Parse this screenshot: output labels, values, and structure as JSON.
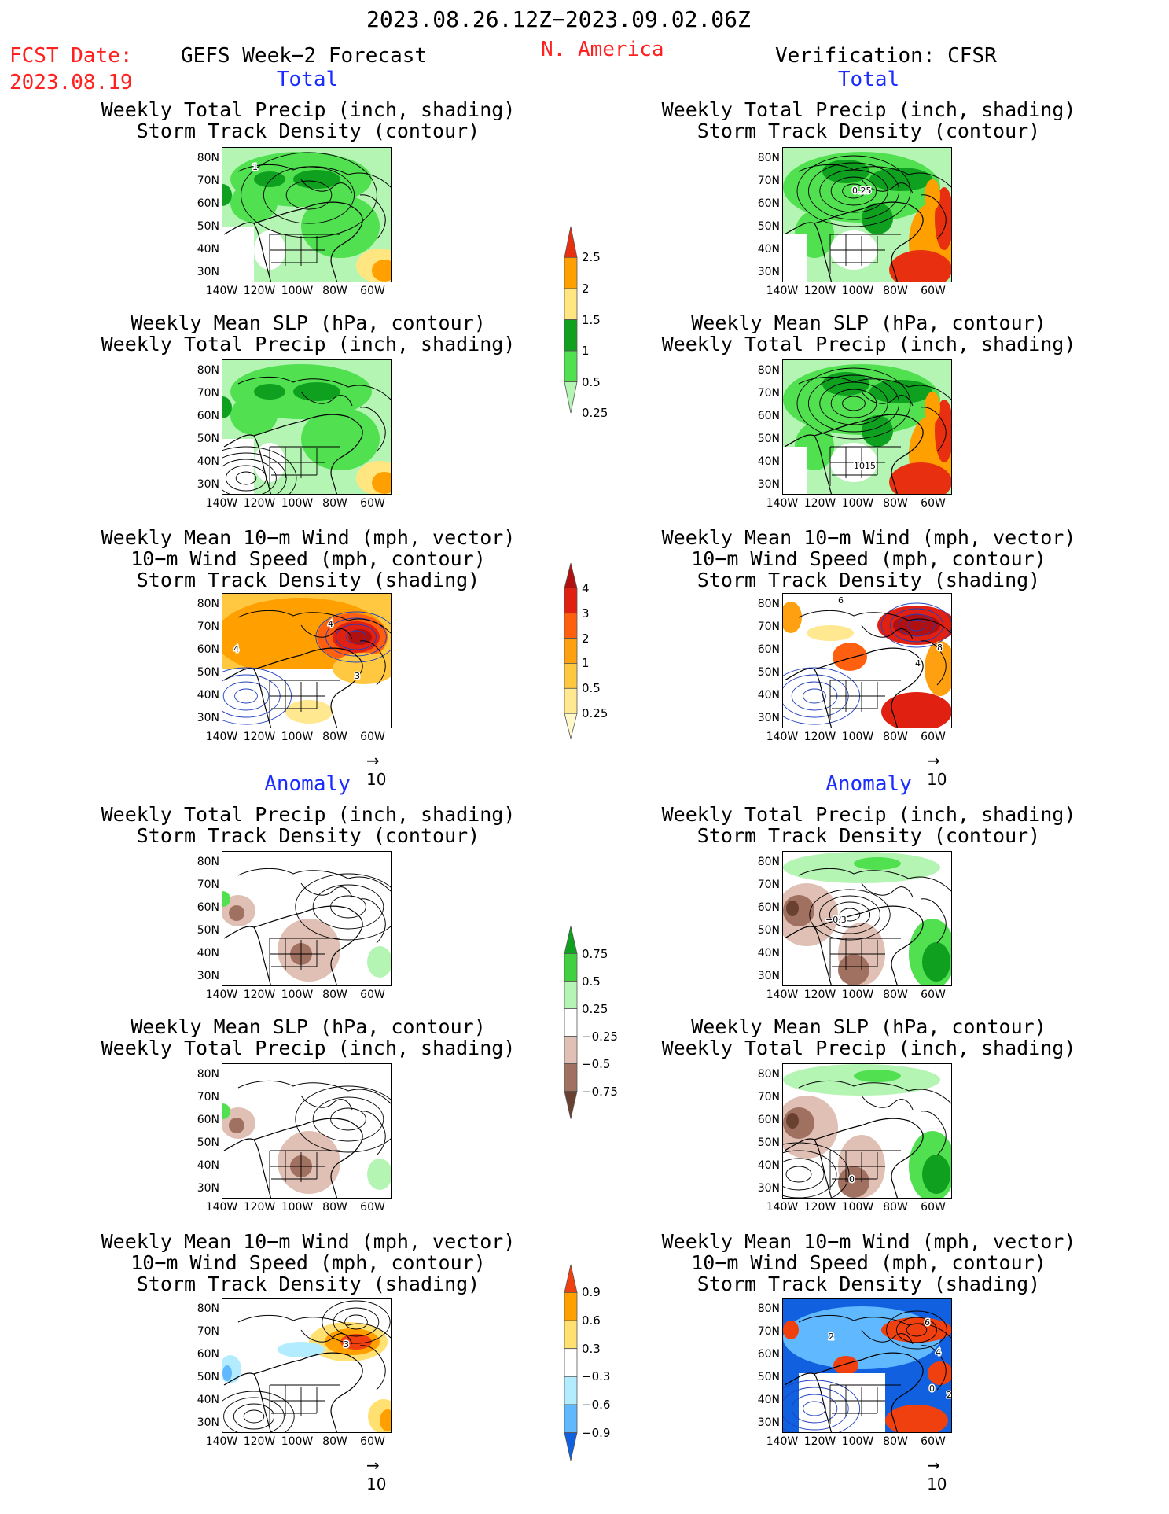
{
  "header": {
    "date_range": "2023.08.26.12Z−2023.09.02.06Z",
    "fcst_label": "FCST Date:",
    "fcst_date": "2023.08.19",
    "region": "N. America",
    "left_title": "GEFS Week−2 Forecast",
    "right_title": "Verification: CFSR"
  },
  "sections": {
    "total": "Total",
    "anomaly": "Anomaly"
  },
  "titles": {
    "precip_storm": [
      "Weekly Total Precip (inch, shading)",
      "Storm Track Density (contour)"
    ],
    "slp_precip": [
      "Weekly Mean SLP (hPa, contour)",
      "Weekly Total Precip (inch, shading)"
    ],
    "wind": [
      "Weekly Mean 10−m Wind (mph, vector)",
      "10−m Wind Speed (mph, contour)",
      "Storm Track Density (shading)"
    ]
  },
  "axes": {
    "lat": [
      "80N",
      "70N",
      "60N",
      "50N",
      "40N",
      "30N"
    ],
    "lon": [
      "140W",
      "120W",
      "100W",
      "80W",
      "60W"
    ]
  },
  "vector_scale": "10",
  "contour_labels": {
    "fc_total_storm": "1",
    "obs_total_storm": "0.25",
    "obs_total_slp": "1015",
    "fc_total_wind": [
      "4",
      "4",
      "3"
    ],
    "obs_total_wind": [
      "6",
      "8",
      "4"
    ],
    "obs_anom_storm": "−0.3",
    "obs_anom_slp": "0",
    "fc_anom_wind": "3",
    "obs_anom_wind": [
      "6",
      "2",
      "4",
      "0",
      "2"
    ]
  },
  "colorbars": {
    "precip_total": {
      "labels": [
        "2.5",
        "2",
        "1.5",
        "1",
        "0.5",
        "0.25"
      ],
      "colors": [
        "#e83010",
        "#ffa000",
        "#ffe680",
        "#10a020",
        "#50e050",
        "#b4f5b4"
      ]
    },
    "storm_total": {
      "labels": [
        "4",
        "3",
        "2",
        "1",
        "0.5",
        "0.25"
      ],
      "colors": [
        "#b01010",
        "#e02010",
        "#ff6010",
        "#ffa010",
        "#ffc840",
        "#ffe890",
        "#fff8c8"
      ]
    },
    "precip_anom": {
      "labels": [
        "0.75",
        "0.5",
        "0.25",
        "−0.25",
        "−0.5",
        "−0.75"
      ],
      "colors": [
        "#10a020",
        "#40d040",
        "#b4f5b4",
        "#ffffff",
        "#e0c0b4",
        "#a07060",
        "#6a4030"
      ]
    },
    "storm_anom": {
      "labels": [
        "0.9",
        "0.6",
        "0.3",
        "−0.3",
        "−0.6",
        "−0.9"
      ],
      "colors": [
        "#f04010",
        "#ffa000",
        "#ffe070",
        "#ffffff",
        "#b4ecff",
        "#60b8ff",
        "#1060e0"
      ]
    }
  }
}
